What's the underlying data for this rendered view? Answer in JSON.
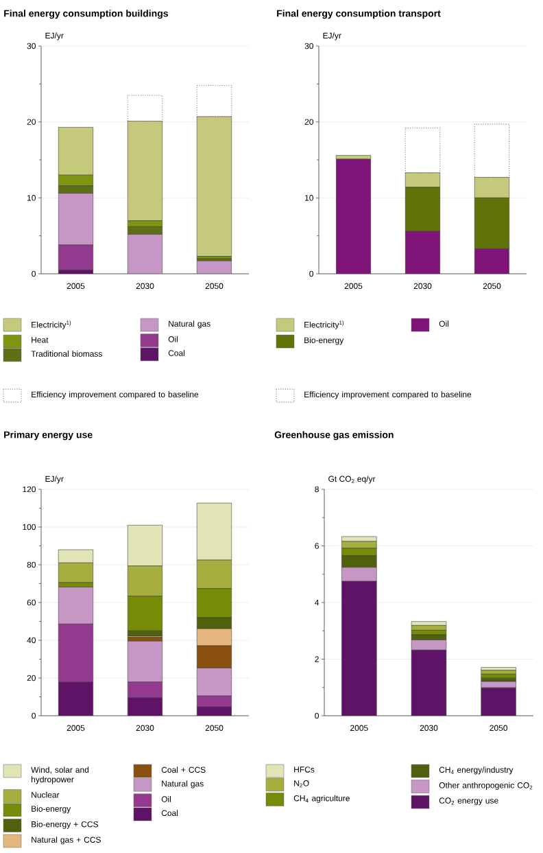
{
  "chart_data": [
    {
      "type": "bar",
      "stacked": true,
      "title": "Final energy consumption buildings",
      "ylabel": "EJ/yr",
      "categories": [
        "2005",
        "2030",
        "2050"
      ],
      "ylim": [
        0,
        30
      ],
      "yticks": [
        0,
        {
          "value": 5,
          "label": null
        },
        10,
        {
          "value": 15,
          "label": null
        },
        20,
        {
          "value": 25,
          "label": null
        },
        30
      ],
      "grid": "y",
      "legend": "bottom",
      "series": [
        {
          "name": "Coal",
          "color": "#5f1367",
          "values": [
            0.5,
            0,
            0
          ]
        },
        {
          "name": "Oil",
          "color": "#923a8e",
          "values": [
            3.3,
            0,
            0
          ]
        },
        {
          "name": "Natural gas",
          "color": "#c696c4",
          "values": [
            6.8,
            5.2,
            1.7
          ]
        },
        {
          "name": "Traditional biomass",
          "color": "#5e7016",
          "values": [
            1.0,
            1.0,
            0.3
          ]
        },
        {
          "name": "Heat",
          "color": "#7f9410",
          "values": [
            1.4,
            0.8,
            0.3
          ]
        },
        {
          "name": "Electricity$^{1)}$",
          "color": "#c5c97c",
          "values": [
            6.3,
            13.1,
            18.4
          ]
        },
        {
          "name": "Efficiency improvement compared to baseline",
          "color": "#a0a0a0",
          "line_style": "dotted",
          "values": [
            0,
            3.4,
            4.1
          ]
        }
      ]
    },
    {
      "type": "bar",
      "stacked": true,
      "title": "Final energy consumption transport",
      "ylabel": "EJ/yr",
      "categories": [
        "2005",
        "2030",
        "2050"
      ],
      "ylim": [
        0,
        30
      ],
      "yticks": [
        0,
        {
          "value": 5,
          "label": null
        },
        10,
        {
          "value": 15,
          "label": null
        },
        20,
        {
          "value": 25,
          "label": null
        },
        30
      ],
      "grid": "y",
      "legend": "bottom",
      "series": [
        {
          "name": "Oil",
          "color": "#7f1479",
          "values": [
            15.1,
            5.6,
            3.3
          ]
        },
        {
          "name": "Bio-energy",
          "color": "#617308",
          "values": [
            0,
            5.8,
            6.7
          ]
        },
        {
          "name": "Electricity$^{1)}$",
          "color": "#c5c97c",
          "values": [
            0.5,
            1.9,
            2.7
          ]
        },
        {
          "name": "Efficiency improvement compared to baseline",
          "color": "#a0a0a0",
          "line_style": "dotted",
          "values": [
            0,
            5.9,
            7.0
          ]
        }
      ]
    },
    {
      "type": "bar",
      "stacked": true,
      "title": "Primary energy use",
      "ylabel": "EJ/yr",
      "categories": [
        "2005",
        "2030",
        "2050"
      ],
      "ylim": [
        0,
        120
      ],
      "yticks": [
        0,
        {
          "value": 10,
          "label": null
        },
        20,
        {
          "value": 30,
          "label": null
        },
        40,
        {
          "value": 50,
          "label": null
        },
        60,
        {
          "value": 70,
          "label": null
        },
        80,
        {
          "value": 90,
          "label": null
        },
        100,
        {
          "value": 110,
          "label": null
        },
        120
      ],
      "grid": "y",
      "legend": "bottom",
      "series": [
        {
          "name": "Coal",
          "color": "#5f1367",
          "values": [
            17.8,
            9.6,
            4.7
          ]
        },
        {
          "name": "Oil",
          "color": "#923a8e",
          "values": [
            30.8,
            8.3,
            5.8
          ]
        },
        {
          "name": "Natural gas",
          "color": "#c696c4",
          "values": [
            19.6,
            21.6,
            14.8
          ]
        },
        {
          "name": "Coal + CCS",
          "color": "#8a5010",
          "values": [
            0,
            2.1,
            11.8
          ]
        },
        {
          "name": "Natural gas + CCS",
          "color": "#e5b67e",
          "values": [
            0,
            0.6,
            9.0
          ]
        },
        {
          "name": "Bio-energy + CCS",
          "color": "#4f610f",
          "values": [
            0,
            2.8,
            5.9
          ]
        },
        {
          "name": "Bio-energy",
          "color": "#768b06",
          "values": [
            2.4,
            18.4,
            15.4
          ]
        },
        {
          "name": "Nuclear",
          "color": "#a6ae40",
          "values": [
            10.4,
            16.0,
            15.1
          ]
        },
        {
          "name": "Wind, solar and hydropower",
          "color": "#e1e4b5",
          "values": [
            7.0,
            21.6,
            30.2
          ]
        }
      ]
    },
    {
      "type": "bar",
      "stacked": true,
      "title": "Greenhouse gas emission",
      "ylabel": "Gt CO$_{2}$ eq/yr",
      "categories": [
        "2005",
        "2030",
        "2050"
      ],
      "ylim": [
        0,
        8
      ],
      "yticks": [
        0,
        {
          "value": 1,
          "label": null
        },
        2,
        {
          "value": 3,
          "label": null
        },
        4,
        {
          "value": 5,
          "label": null
        },
        6,
        {
          "value": 7,
          "label": null
        },
        8
      ],
      "grid": "y",
      "legend": "bottom",
      "series": [
        {
          "name": "CO$_{2}$ energy use",
          "color": "#5f1367",
          "values": [
            4.75,
            2.32,
            0.99
          ]
        },
        {
          "name": "Other anthropogenic CO$_{2}$",
          "color": "#c696c4",
          "values": [
            0.49,
            0.36,
            0.22
          ]
        },
        {
          "name": "CH$_{4}$ energy/industry",
          "color": "#4f610f",
          "values": [
            0.42,
            0.18,
            0.12
          ]
        },
        {
          "name": "CH$_{4}$ agriculture",
          "color": "#768b06",
          "values": [
            0.26,
            0.16,
            0.14
          ]
        },
        {
          "name": "N$_{2}$O",
          "color": "#a6ae40",
          "values": [
            0.24,
            0.17,
            0.14
          ]
        },
        {
          "name": "HFCs",
          "color": "#e1e4b5",
          "values": [
            0.17,
            0.14,
            0.1
          ]
        }
      ]
    }
  ]
}
